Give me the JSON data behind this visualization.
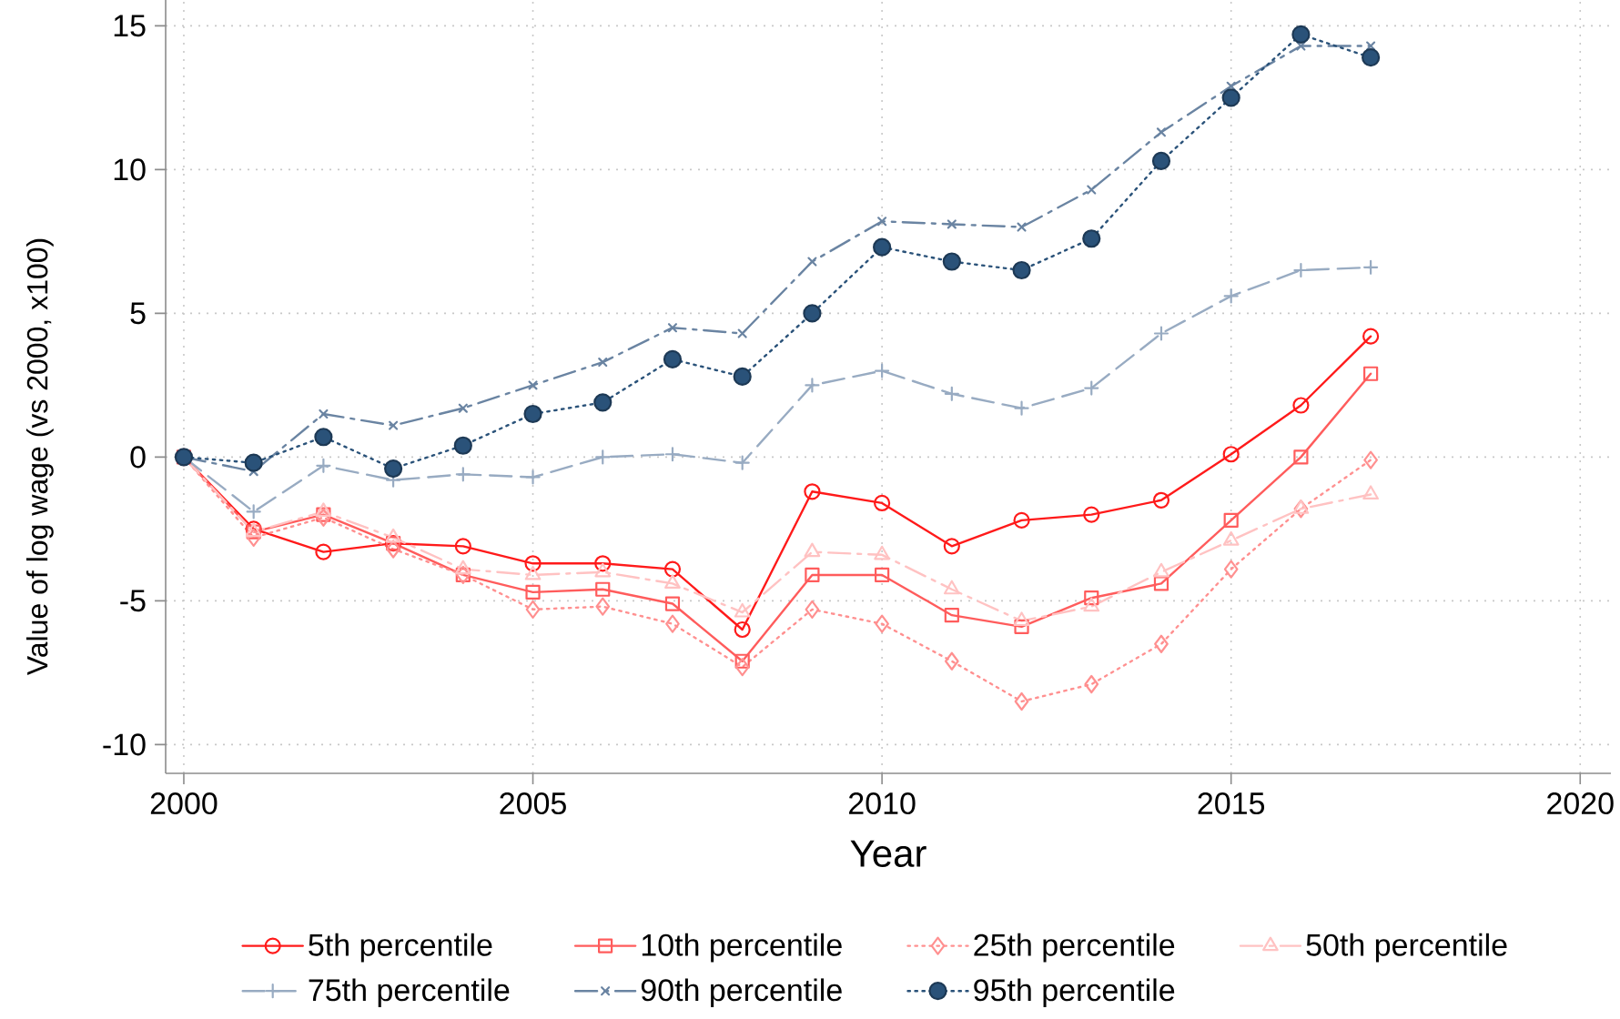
{
  "chart_data": {
    "type": "line",
    "xlabel": "Year",
    "ylabel": "Value of log wage (vs 2000, x100)",
    "x": [
      2000,
      2001,
      2002,
      2003,
      2004,
      2005,
      2006,
      2007,
      2008,
      2009,
      2010,
      2011,
      2012,
      2013,
      2014,
      2015,
      2016,
      2017
    ],
    "xlim": [
      1999.74,
      2020.44
    ],
    "ylim": [
      -11,
      15.9
    ],
    "xticks": [
      2000,
      2005,
      2010,
      2015,
      2020
    ],
    "yticks": [
      -10,
      -5,
      0,
      5,
      10,
      15
    ],
    "grid": true,
    "legend": "bottom",
    "series": [
      {
        "name": "5th percentile",
        "color": "#ff1a1a",
        "marker": "open circle",
        "line_style": "solid",
        "values": [
          0,
          -2.5,
          -3.3,
          -3.0,
          -3.1,
          -3.7,
          -3.7,
          -3.9,
          -6.0,
          -1.2,
          -1.6,
          -3.1,
          -2.2,
          -2.0,
          -1.5,
          0.1,
          1.8,
          4.2
        ]
      },
      {
        "name": "10th percentile",
        "color": "#ff5c5c",
        "marker": "square",
        "line_style": "solid",
        "values": [
          0,
          -2.6,
          -2.0,
          -3.0,
          -4.1,
          -4.7,
          -4.6,
          -5.1,
          -7.1,
          -4.1,
          -4.1,
          -5.5,
          -5.9,
          -4.9,
          -4.4,
          -2.2,
          0.0,
          2.9
        ]
      },
      {
        "name": "25th percentile",
        "color": "#ff9090",
        "marker": "diamond",
        "line_style": "dotted",
        "values": [
          0,
          -2.8,
          -2.1,
          -3.2,
          -4.1,
          -5.3,
          -5.2,
          -5.8,
          -7.3,
          -5.3,
          -5.8,
          -7.1,
          -8.5,
          -7.9,
          -6.5,
          -3.9,
          -1.8,
          -0.1
        ]
      },
      {
        "name": "50th percentile",
        "color": "#ffc2c2",
        "marker": "triangle",
        "line_style": "dashdot",
        "values": [
          0,
          -2.6,
          -1.9,
          -2.8,
          -3.9,
          -4.1,
          -4.0,
          -4.4,
          -5.4,
          -3.3,
          -3.4,
          -4.6,
          -5.7,
          -5.2,
          -4.0,
          -2.9,
          -1.8,
          -1.3
        ]
      },
      {
        "name": "75th percentile",
        "color": "#98abc2",
        "marker": "plus",
        "line_style": "dashed",
        "values": [
          0,
          -1.9,
          -0.3,
          -0.8,
          -0.6,
          -0.7,
          0.0,
          0.1,
          -0.2,
          2.5,
          3.0,
          2.2,
          1.7,
          2.4,
          4.3,
          5.6,
          6.5,
          6.6
        ]
      },
      {
        "name": "90th percentile",
        "color": "#6a84a2",
        "marker": "cross",
        "line_style": "dashdot",
        "values": [
          0,
          -0.5,
          1.5,
          1.1,
          1.7,
          2.5,
          3.3,
          4.5,
          4.3,
          6.8,
          8.2,
          8.1,
          8.0,
          9.3,
          11.3,
          12.9,
          14.3,
          14.3
        ]
      },
      {
        "name": "95th percentile",
        "color": "#2a5279",
        "marker": "circle",
        "line_style": "dotted",
        "values": [
          0,
          -0.2,
          0.7,
          -0.4,
          0.4,
          1.5,
          1.9,
          3.4,
          2.8,
          5.0,
          7.3,
          6.8,
          6.5,
          7.6,
          10.3,
          12.5,
          14.7,
          13.9
        ]
      }
    ]
  }
}
